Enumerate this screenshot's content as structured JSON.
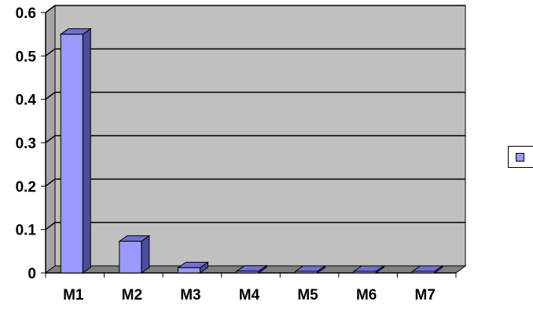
{
  "chart_data": {
    "type": "bar",
    "categories": [
      "M1",
      "M2",
      "M3",
      "M4",
      "M5",
      "M6",
      "M7"
    ],
    "values": [
      0.55,
      0.073,
      0.012,
      0.004,
      0.001,
      0.0005,
      0.0003
    ],
    "ylim": [
      0,
      0.6
    ],
    "yticks": [
      "0",
      "0.1",
      "0.2",
      "0.3",
      "0.4",
      "0.5",
      "0.6"
    ],
    "grid": true,
    "legend": {
      "placement": "right",
      "entries": [
        ""
      ]
    },
    "colors": {
      "bar_front": "#9999ff",
      "bar_side": "#4d4d99",
      "bar_top": "#7070d0",
      "wall": "#c0c0c0",
      "wall_side": "#a6a6a6",
      "floor": "#808080"
    }
  }
}
